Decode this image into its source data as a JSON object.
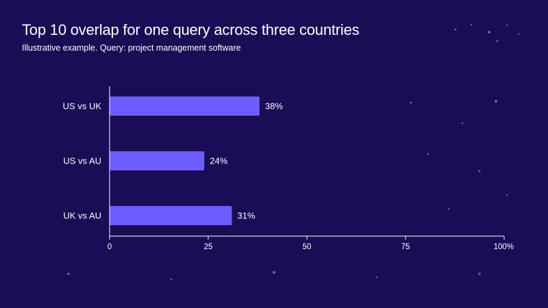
{
  "header": {
    "title": "Top 10 overlap for one query across three countries",
    "subtitle": "Illustrative example. Query: project management software"
  },
  "colors": {
    "background": "#1b0c56",
    "bar": "#6b5cff",
    "axis": "#ffffff",
    "text": "#ffffff",
    "star": "#6b5cff"
  },
  "chart_data": {
    "type": "bar",
    "orientation": "horizontal",
    "categories": [
      "US vs UK",
      "US vs AU",
      "UK vs AU"
    ],
    "values": [
      38,
      24,
      31
    ],
    "value_labels": [
      "38%",
      "24%",
      "31%"
    ],
    "xlim": [
      0,
      100
    ],
    "x_ticks": [
      0,
      25,
      50,
      75,
      100
    ],
    "x_tick_labels": [
      "0",
      "25",
      "50",
      "75",
      "100%"
    ],
    "grid": false,
    "legend": "none"
  }
}
